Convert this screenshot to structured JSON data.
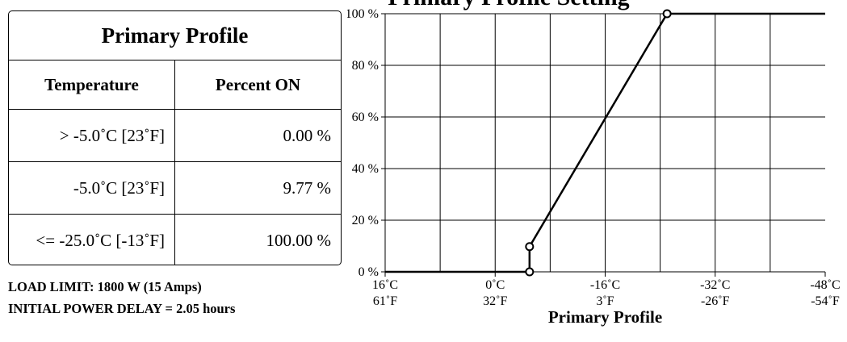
{
  "page_title": "Primary Profile Setting",
  "table": {
    "title": "Primary Profile",
    "headers": [
      "Temperature",
      "Percent ON"
    ],
    "rows": [
      {
        "temperature": "> -5.0˚C [23˚F]",
        "percent": "0.00 %"
      },
      {
        "temperature": "-5.0˚C [23˚F]",
        "percent": "9.77 %"
      },
      {
        "temperature": "<= -25.0˚C [-13˚F]",
        "percent": "100.00 %"
      }
    ]
  },
  "notes": {
    "load_limit": "LOAD LIMIT: 1800 W (15 Amps)",
    "initial_delay": "INITIAL POWER DELAY = 2.05 hours"
  },
  "chart_data": {
    "type": "line",
    "title": "",
    "xlabel": "Primary Profile",
    "ylabel": "",
    "x_unit": "°C",
    "xlim": [
      16,
      -48
    ],
    "ylim": [
      0,
      100
    ],
    "grid": true,
    "x_ticks": [
      {
        "value": 16,
        "c": "16˚C",
        "f": "61˚F"
      },
      {
        "value": 0,
        "c": "0˚C",
        "f": "32˚F"
      },
      {
        "value": -16,
        "c": "-16˚C",
        "f": "3˚F"
      },
      {
        "value": -32,
        "c": "-32˚C",
        "f": "-26˚F"
      },
      {
        "value": -48,
        "c": "-48˚C",
        "f": "-54˚F"
      }
    ],
    "y_ticks": [
      {
        "value": 0,
        "label": "0 %"
      },
      {
        "value": 20,
        "label": "20 %"
      },
      {
        "value": 40,
        "label": "40 %"
      },
      {
        "value": 60,
        "label": "60 %"
      },
      {
        "value": 80,
        "label": "80 %"
      },
      {
        "value": 100,
        "label": "100 %"
      }
    ],
    "series": [
      {
        "x": [
          16,
          -5,
          -5,
          -25,
          -48
        ],
        "y": [
          0,
          0,
          9.77,
          100,
          100
        ],
        "markers": [
          {
            "x": -5,
            "y": 0
          },
          {
            "x": -5,
            "y": 9.77
          },
          {
            "x": -25,
            "y": 100
          }
        ]
      }
    ]
  }
}
